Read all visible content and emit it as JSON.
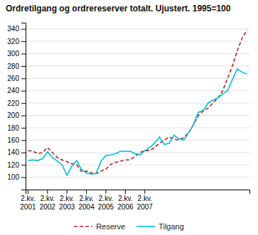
{
  "chart_data": {
    "type": "line",
    "title": "Ordretilgang og ordrereserver totalt. Ujustert. 1995=100",
    "categories": [
      "2.kv.\n2001",
      null,
      null,
      null,
      "2.kv.\n2002",
      null,
      null,
      null,
      "2.kv.\n2003",
      null,
      null,
      null,
      "2.kv.\n2004",
      null,
      null,
      null,
      "2.kv.\n2005",
      null,
      null,
      null,
      "2.kv.\n2006",
      null,
      null,
      null,
      "2.kv.\n2007",
      null,
      null,
      null,
      null,
      null,
      null,
      null,
      null,
      null,
      null,
      null,
      null,
      null,
      null,
      null,
      null,
      null,
      null,
      null,
      null,
      null
    ],
    "series": [
      {
        "name": "Reserve",
        "color": "#b22222",
        "line_style": "dashed",
        "values": [
          143,
          142,
          138,
          140,
          148,
          140,
          132,
          128,
          125,
          122,
          120,
          109,
          110,
          107,
          106,
          110,
          113,
          121,
          124,
          126,
          128,
          128,
          134,
          140,
          143,
          143,
          148,
          155,
          160,
          165,
          162,
          160,
          164,
          172,
          185,
          200,
          207,
          212,
          220,
          228,
          240,
          260,
          280,
          305,
          325,
          338
        ]
      },
      {
        "name": "Tilgang",
        "color": "#00bcd4",
        "line_style": "solid",
        "values": [
          127,
          128,
          127,
          130,
          141,
          132,
          126,
          120,
          103,
          118,
          127,
          112,
          107,
          105,
          106,
          126,
          135,
          136,
          138,
          142,
          142,
          142,
          138,
          136,
          143,
          148,
          155,
          165,
          153,
          155,
          168,
          162,
          160,
          172,
          185,
          205,
          208,
          220,
          225,
          228,
          235,
          240,
          258,
          275,
          270,
          267
        ]
      }
    ],
    "ylim": [
      80,
      350
    ],
    "yticks": [
      100,
      120,
      140,
      160,
      180,
      200,
      220,
      240,
      260,
      280,
      300,
      320,
      340
    ],
    "grid": true,
    "legend": "bottom"
  }
}
